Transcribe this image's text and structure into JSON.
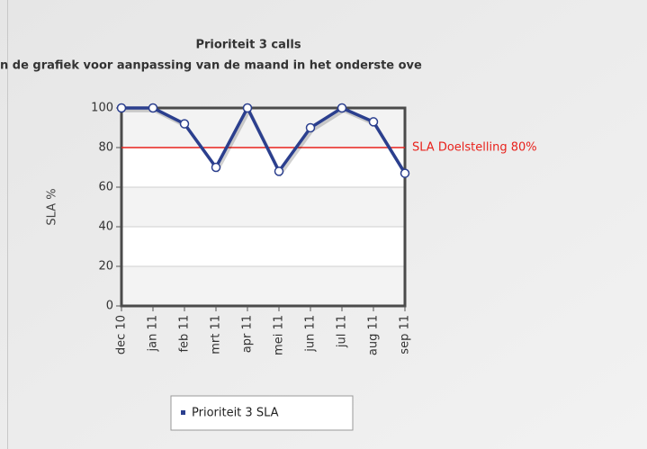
{
  "chart_data": {
    "type": "line",
    "title": "Prioriteit 3 calls",
    "subtitle": "n de grafiek voor aanpassing van de maand in het onderste ove",
    "y_label": "SLA %",
    "categories": [
      "dec 10",
      "jan 11",
      "feb 11",
      "mrt 11",
      "apr 11",
      "mei 11",
      "jun 11",
      "jul 11",
      "aug 11",
      "sep 11"
    ],
    "series": [
      {
        "name": "Prioriteit 3 SLA",
        "color": "#2b3f8e",
        "values": [
          100,
          100,
          92,
          70,
          100,
          68,
          90,
          100,
          93,
          67
        ]
      }
    ],
    "ylim": [
      0,
      100
    ],
    "yticks": [
      0,
      20,
      40,
      60,
      80,
      100
    ],
    "target": {
      "value": 80,
      "label": "SLA Doelstelling 80%",
      "color": "#e8221c"
    },
    "legend": "bottom"
  }
}
